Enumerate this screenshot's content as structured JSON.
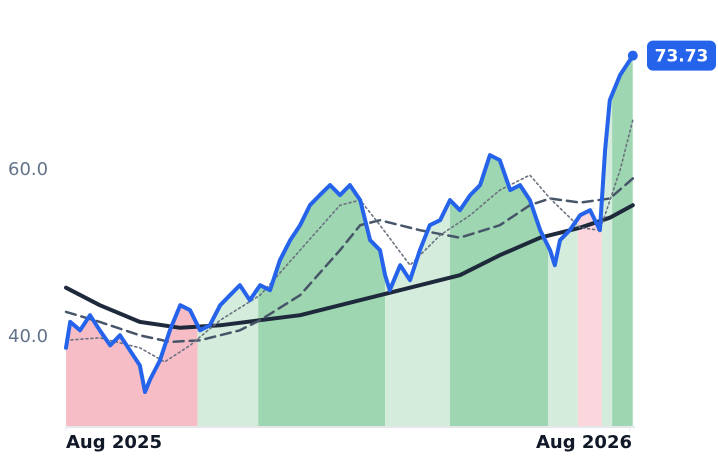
{
  "chart_data": {
    "type": "line",
    "xlim": [
      0,
      12.1
    ],
    "ylim": [
      29.2,
      78
    ],
    "xticks": [
      {
        "value": 0,
        "label": "Aug 2025"
      },
      {
        "value": 12,
        "label": "Aug 2026"
      }
    ],
    "yticks": [
      {
        "value": 40,
        "label": "40.0"
      },
      {
        "value": 60,
        "label": "60.0"
      }
    ],
    "regions": [
      {
        "start": 0,
        "end": 2.8,
        "color": "#f7bdc7"
      },
      {
        "start": 2.8,
        "end": 4.09,
        "color": "#d4ecdc"
      },
      {
        "start": 4.09,
        "end": 6.79,
        "color": "#9dd6b0"
      },
      {
        "start": 6.79,
        "end": 8.17,
        "color": "#d4ecdc"
      },
      {
        "start": 8.17,
        "end": 10.26,
        "color": "#9dd6b0"
      },
      {
        "start": 10.26,
        "end": 10.89,
        "color": "#d4ecdc"
      },
      {
        "start": 10.89,
        "end": 11.4,
        "color": "#fbd6dd"
      },
      {
        "start": 11.4,
        "end": 11.62,
        "color": "#d4ecdc"
      },
      {
        "start": 11.62,
        "end": 12.06,
        "color": "#9dd6b0"
      }
    ],
    "series": [
      {
        "style": "solid-thick",
        "color": "#1e293b",
        "x": [
          0,
          0.72,
          1.57,
          2.43,
          3.28,
          4.13,
          4.98,
          5.83,
          6.68,
          7.53,
          8.38,
          9.23,
          10.09,
          10.94,
          11.57,
          12.06
        ],
        "values": [
          45.9,
          43.8,
          41.8,
          41.1,
          41.4,
          42.0,
          42.6,
          43.8,
          45.0,
          46.2,
          47.4,
          49.8,
          51.9,
          53.1,
          54.3,
          55.8
        ]
      },
      {
        "style": "dashed",
        "color": "#475569",
        "x": [
          0,
          0.72,
          1.57,
          2.21,
          2.85,
          3.7,
          4.13,
          4.98,
          5.83,
          6.26,
          6.68,
          7.53,
          8.38,
          9.23,
          9.87,
          10.3,
          10.94,
          11.57,
          12.06
        ],
        "values": [
          43.0,
          41.8,
          40.2,
          39.4,
          39.6,
          40.8,
          42.0,
          45.0,
          50.4,
          53.4,
          54.0,
          52.8,
          51.9,
          53.4,
          55.8,
          56.6,
          56.1,
          56.6,
          59.0
        ]
      },
      {
        "style": "dotted",
        "color": "#6b7280",
        "x": [
          0,
          0.72,
          1.57,
          2.1,
          2.64,
          3.28,
          4.13,
          4.98,
          5.83,
          6.26,
          6.68,
          7.32,
          7.96,
          8.6,
          9.23,
          9.87,
          10.3,
          10.94,
          11.36,
          11.79,
          12.06
        ],
        "values": [
          39.6,
          39.9,
          38.7,
          37.0,
          39.0,
          42.0,
          45.0,
          50.4,
          55.8,
          56.4,
          53.4,
          48.6,
          52.2,
          54.6,
          57.6,
          59.4,
          56.6,
          53.1,
          52.8,
          60.0,
          66.0
        ]
      },
      {
        "style": "price",
        "color": "#2563eb",
        "x": [
          0,
          0.09,
          0.3,
          0.51,
          0.72,
          0.94,
          1.15,
          1.36,
          1.57,
          1.68,
          1.79,
          2.0,
          2.21,
          2.43,
          2.64,
          2.85,
          3.06,
          3.28,
          3.49,
          3.7,
          3.91,
          4.13,
          4.34,
          4.55,
          4.77,
          4.98,
          5.19,
          5.4,
          5.62,
          5.83,
          6.04,
          6.26,
          6.47,
          6.68,
          6.79,
          6.89,
          7.11,
          7.32,
          7.53,
          7.74,
          7.96,
          8.17,
          8.38,
          8.6,
          8.81,
          9.02,
          9.23,
          9.45,
          9.66,
          9.87,
          10.09,
          10.3,
          10.4,
          10.51,
          10.72,
          10.94,
          11.15,
          11.36,
          11.47,
          11.57,
          11.79,
          12.0,
          12.06
        ],
        "values": [
          38.7,
          41.8,
          40.8,
          42.6,
          40.8,
          39.0,
          40.2,
          38.4,
          36.6,
          33.4,
          34.9,
          37.2,
          40.8,
          43.8,
          43.2,
          40.8,
          41.4,
          43.8,
          45.0,
          46.2,
          44.4,
          46.2,
          45.6,
          49.2,
          51.6,
          53.4,
          55.8,
          57.0,
          58.2,
          57.0,
          58.2,
          56.4,
          51.6,
          50.4,
          47.4,
          45.6,
          48.6,
          46.8,
          50.4,
          53.4,
          54.0,
          56.4,
          55.2,
          57.0,
          58.2,
          61.8,
          61.2,
          57.6,
          58.2,
          56.4,
          52.8,
          50.4,
          48.6,
          51.6,
          52.8,
          54.6,
          55.2,
          52.8,
          62.4,
          68.4,
          71.4,
          73.2,
          73.73
        ]
      }
    ]
  }
}
